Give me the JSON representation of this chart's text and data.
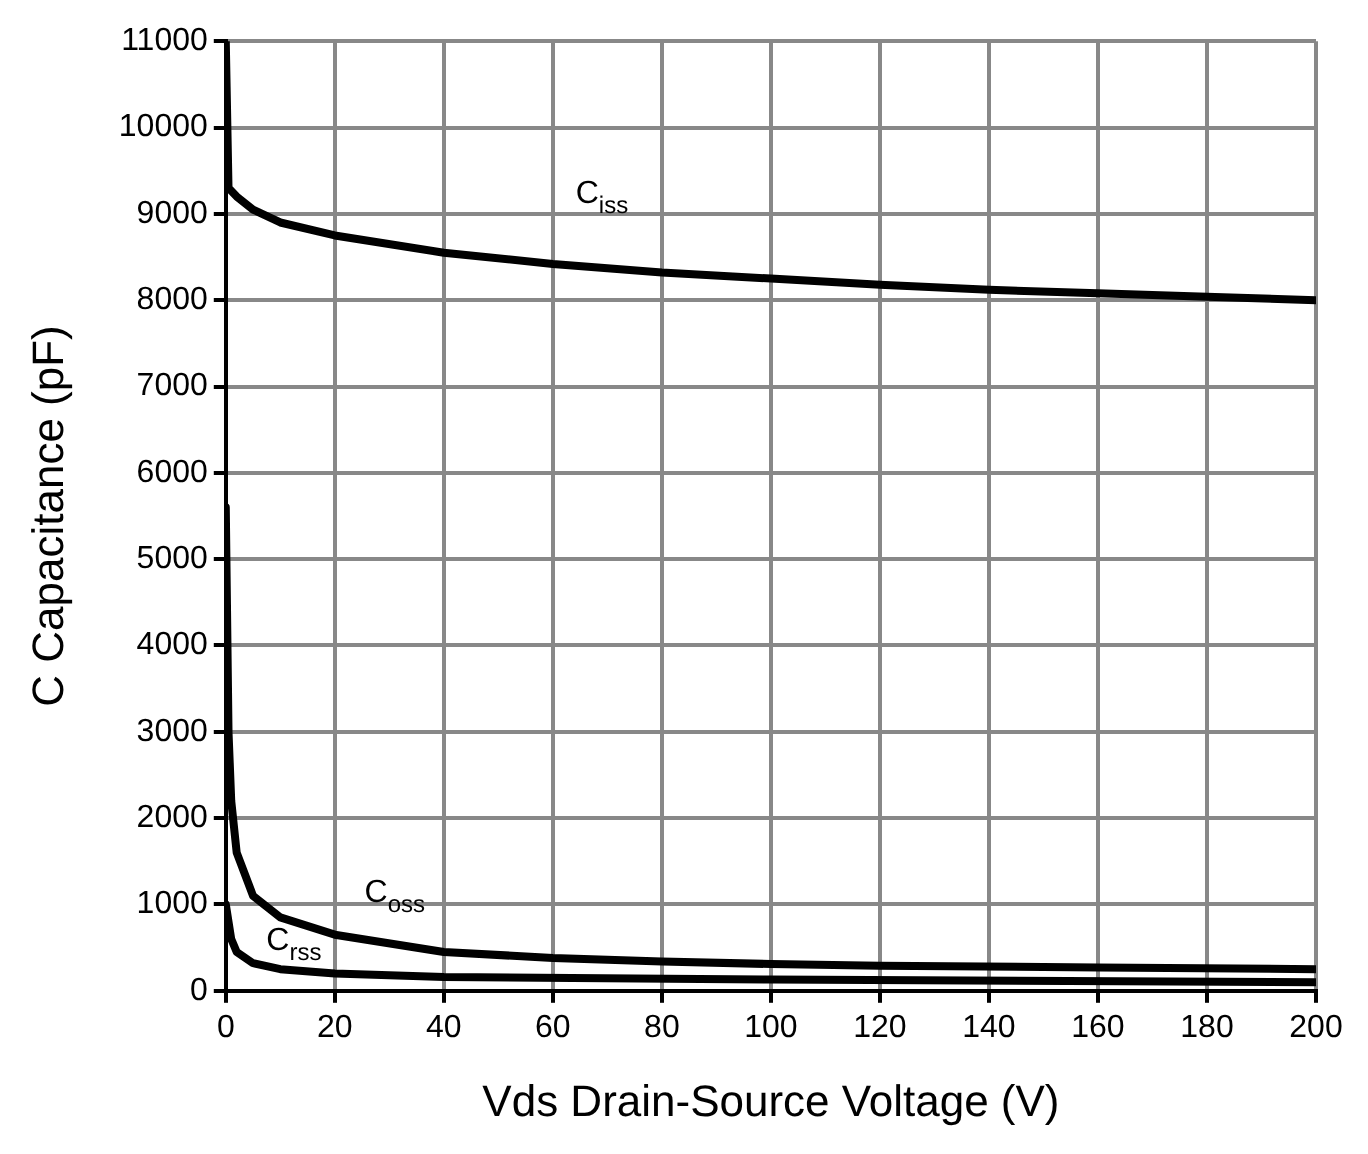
{
  "chart_data": {
    "type": "line",
    "xlabel": "Vds Drain-Source Voltage (V)",
    "ylabel": "C Capacitance (pF)",
    "xlim": [
      0,
      200
    ],
    "xticks": [
      0,
      20,
      40,
      60,
      80,
      100,
      120,
      140,
      160,
      180,
      200
    ],
    "ylim": [
      0,
      11000
    ],
    "yticks": [
      0,
      1000,
      2000,
      3000,
      4000,
      5000,
      6000,
      7000,
      8000,
      9000,
      10000,
      11000
    ],
    "grid": true,
    "legend": false,
    "marker": "none",
    "line_style": "solid",
    "series": [
      {
        "color": "#000000",
        "x": [
          0,
          0.5,
          2,
          5,
          10,
          20,
          40,
          60,
          80,
          100,
          120,
          140,
          160,
          180,
          200
        ],
        "values": [
          11000,
          9300,
          9200,
          9050,
          8900,
          8750,
          8550,
          8420,
          8320,
          8250,
          8180,
          8120,
          8080,
          8040,
          8000
        ]
      },
      {
        "color": "#000000",
        "x": [
          0,
          0.5,
          1,
          2,
          5,
          10,
          20,
          40,
          60,
          80,
          100,
          120,
          160,
          200
        ],
        "values": [
          5600,
          3000,
          2200,
          1600,
          1100,
          850,
          650,
          450,
          380,
          340,
          310,
          290,
          270,
          250
        ]
      },
      {
        "color": "#000000",
        "x": [
          0,
          1,
          2,
          5,
          10,
          20,
          40,
          100,
          200
        ],
        "values": [
          1000,
          600,
          450,
          320,
          250,
          200,
          160,
          130,
          100
        ]
      }
    ],
    "annotations": [
      {
        "text": "C$_{iss}$",
        "x": 69,
        "y": 8380
      },
      {
        "text": "C$_{oss}$",
        "x": 31,
        "y": 540
      },
      {
        "text": "C$_{rss}$",
        "x": 12.5,
        "y": 240
      }
    ]
  }
}
